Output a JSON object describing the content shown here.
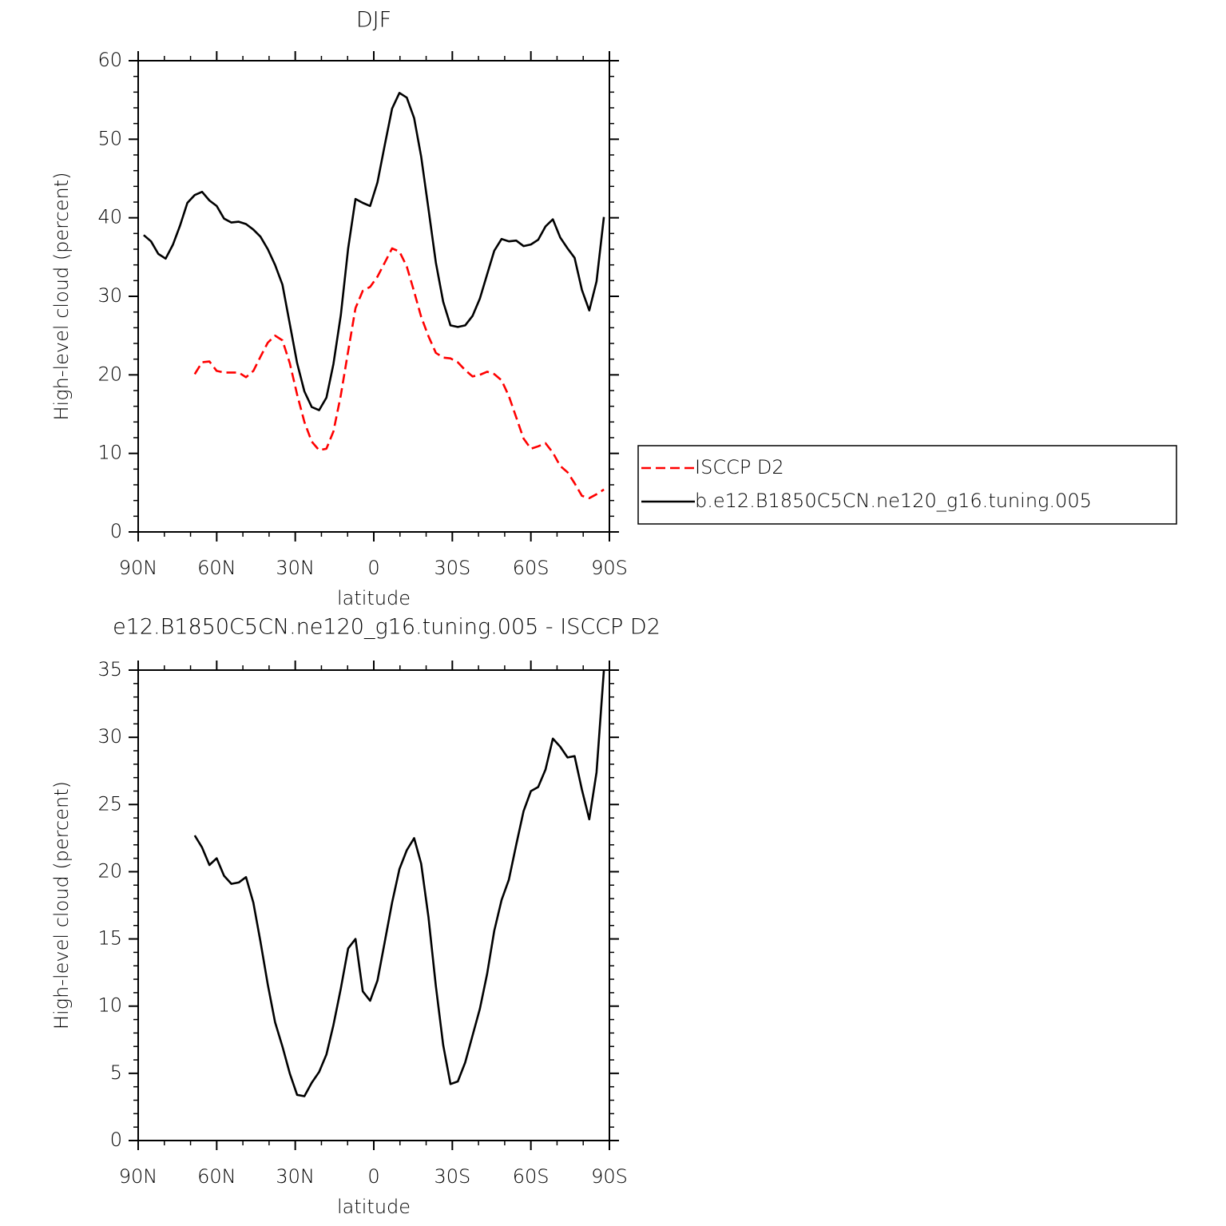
{
  "chart_data": [
    {
      "type": "line",
      "title": "DJF",
      "xlabel": "latitude",
      "ylabel": "High-level cloud (percent)",
      "x": [
        87.9,
        85.1,
        82.3,
        79.5,
        76.7,
        74.0,
        71.2,
        68.4,
        65.6,
        62.8,
        60.0,
        57.2,
        54.4,
        51.6,
        48.8,
        46.0,
        43.3,
        40.5,
        37.7,
        34.9,
        32.1,
        29.3,
        26.5,
        23.7,
        20.9,
        18.1,
        15.4,
        12.6,
        9.8,
        7.0,
        4.2,
        1.4,
        -1.4,
        -4.2,
        -7.0,
        -9.8,
        -12.6,
        -15.4,
        -18.1,
        -20.9,
        -23.7,
        -26.5,
        -29.3,
        -32.1,
        -34.9,
        -37.7,
        -40.5,
        -43.3,
        -46.0,
        -48.8,
        -51.6,
        -54.4,
        -57.2,
        -60.0,
        -62.8,
        -65.6,
        -68.4,
        -71.2,
        -74.0,
        -76.7,
        -79.5,
        -82.3,
        -85.1,
        -87.9
      ],
      "series": [
        {
          "name": "ISCCP D2",
          "color": "#ff0000",
          "linestyle": "dashed",
          "values": [
            null,
            null,
            null,
            null,
            null,
            null,
            null,
            20.1,
            21.6,
            21.7,
            20.5,
            20.3,
            20.3,
            20.3,
            19.7,
            20.5,
            22.3,
            24.1,
            25.0,
            24.4,
            21.5,
            17.5,
            14.0,
            11.5,
            10.4,
            10.6,
            12.8,
            17.4,
            23.0,
            28.5,
            30.7,
            31.2,
            32.5,
            34.3,
            36.1,
            35.7,
            33.8,
            30.6,
            27.4,
            24.9,
            22.8,
            22.2,
            22.1,
            21.6,
            20.6,
            19.8,
            20.0,
            20.4,
            20.1,
            19.3,
            17.3,
            14.6,
            11.9,
            10.6,
            10.9,
            11.3,
            10.1,
            8.4,
            7.6,
            6.2,
            4.6,
            4.3,
            4.8,
            5.4
          ]
        },
        {
          "name": "b.e12.B1850C5CN.ne120_g16.tuning.005",
          "color": "#000000",
          "linestyle": "solid",
          "values": [
            37.8,
            37.0,
            35.4,
            34.8,
            36.6,
            39.0,
            41.9,
            42.9,
            43.3,
            42.2,
            41.5,
            39.9,
            39.4,
            39.5,
            39.2,
            38.5,
            37.6,
            36.0,
            34.0,
            31.5,
            26.5,
            21.5,
            17.9,
            15.9,
            15.5,
            17.1,
            21.4,
            27.6,
            36.1,
            42.4,
            41.9,
            41.5,
            44.5,
            49.3,
            53.9,
            55.9,
            55.3,
            52.7,
            47.8,
            41.1,
            34.3,
            29.3,
            26.3,
            26.1,
            26.3,
            27.5,
            29.7,
            32.8,
            35.8,
            37.3,
            37.0,
            37.1,
            36.4,
            36.6,
            37.2,
            38.9,
            39.8,
            37.5,
            36.1,
            34.9,
            30.8,
            28.2,
            31.9,
            40.1
          ]
        }
      ],
      "xlim": [
        90,
        -90
      ],
      "xticks": [
        {
          "value": 90,
          "label": "90N"
        },
        {
          "value": 60,
          "label": "60N"
        },
        {
          "value": 30,
          "label": "30N"
        },
        0,
        {
          "value": -30,
          "label": "30S"
        },
        {
          "value": -60,
          "label": "60S"
        },
        {
          "value": -90,
          "label": "90S"
        }
      ],
      "ylim": [
        0,
        60
      ],
      "yticks": [
        0,
        10,
        20,
        30,
        40,
        50,
        60
      ],
      "legend": "right"
    },
    {
      "type": "line",
      "title": "e12.B1850C5CN.ne120_g16.tuning.005 - ISCCP D2",
      "xlabel": "latitude",
      "ylabel": "High-level cloud (percent)",
      "x": [
        87.9,
        85.1,
        82.3,
        79.5,
        76.7,
        74.0,
        71.2,
        68.4,
        65.6,
        62.8,
        60.0,
        57.2,
        54.4,
        51.6,
        48.8,
        46.0,
        43.3,
        40.5,
        37.7,
        34.9,
        32.1,
        29.3,
        26.5,
        23.7,
        20.9,
        18.1,
        15.4,
        12.6,
        9.8,
        7.0,
        4.2,
        1.4,
        -1.4,
        -4.2,
        -7.0,
        -9.8,
        -12.6,
        -15.4,
        -18.1,
        -20.9,
        -23.7,
        -26.5,
        -29.3,
        -32.1,
        -34.9,
        -37.7,
        -40.5,
        -43.3,
        -46.0,
        -48.8,
        -51.6,
        -54.4,
        -57.2,
        -60.0,
        -62.8,
        -65.6,
        -68.4,
        -71.2,
        -74.0,
        -76.7,
        -79.5,
        -82.3,
        -85.1,
        -87.9
      ],
      "series": [
        {
          "color": "#000000",
          "linestyle": "solid",
          "values": [
            null,
            null,
            null,
            null,
            null,
            null,
            null,
            22.7,
            21.8,
            20.5,
            21.0,
            19.7,
            19.1,
            19.2,
            19.6,
            17.7,
            14.8,
            11.6,
            8.8,
            7.0,
            5.0,
            3.4,
            3.3,
            4.3,
            5.1,
            6.4,
            8.6,
            11.3,
            14.3,
            15.0,
            11.1,
            10.4,
            11.9,
            14.8,
            17.7,
            20.2,
            21.6,
            22.5,
            20.6,
            16.6,
            11.5,
            7.1,
            4.2,
            4.4,
            5.8,
            7.8,
            9.8,
            12.4,
            15.6,
            17.9,
            19.4,
            22.0,
            24.5,
            26.0,
            26.3,
            27.6,
            29.9,
            29.3,
            28.5,
            28.6,
            26.1,
            23.9,
            27.4,
            35.0
          ]
        }
      ],
      "xlim": [
        90,
        -90
      ],
      "xticks": [
        {
          "value": 90,
          "label": "90N"
        },
        {
          "value": 60,
          "label": "60N"
        },
        {
          "value": 30,
          "label": "30N"
        },
        0,
        {
          "value": -30,
          "label": "30S"
        },
        {
          "value": -60,
          "label": "60S"
        },
        {
          "value": -90,
          "label": "90S"
        }
      ],
      "ylim": [
        0,
        35
      ],
      "yticks": [
        0,
        5,
        10,
        15,
        20,
        25,
        30,
        35
      ]
    }
  ]
}
